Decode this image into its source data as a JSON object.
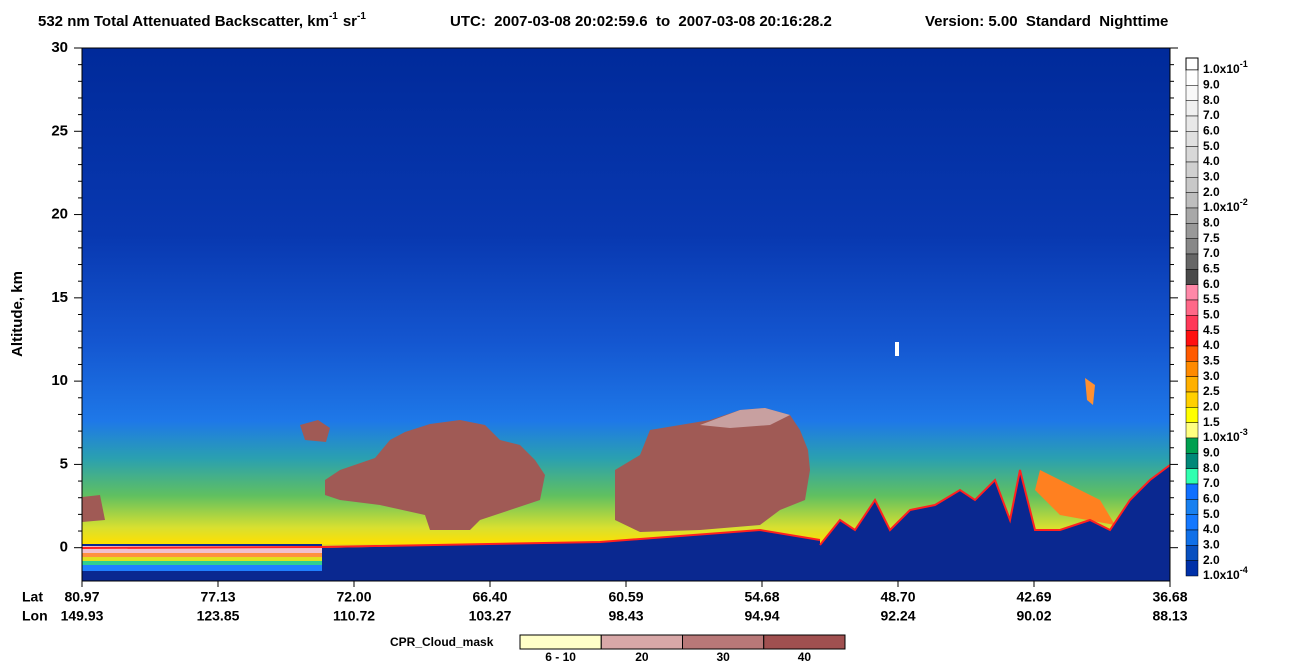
{
  "chart_data": {
    "type": "curtain",
    "title": [
      "532 nm Total Attenuated Backscatter, km",
      "-1",
      "sr",
      "-1"
    ],
    "subtitle": "UTC:  2007-03-08 20:02:59.6  to  2007-03-08 20:16:28.2",
    "version": "Version: 5.00  Standard  Nighttime",
    "ylabel": "Altitude, km",
    "ylim": [
      -2,
      30
    ],
    "yticks": [
      0,
      5,
      10,
      15,
      20,
      25,
      30
    ],
    "x_rows": [
      {
        "name": "Lat",
        "labels": [
          "80.97",
          "77.13",
          "72.00",
          "66.40",
          "60.59",
          "54.68",
          "48.70",
          "42.69",
          "36.68"
        ]
      },
      {
        "name": "Lon",
        "labels": [
          "149.93",
          "123.85",
          "110.72",
          "103.27",
          "98.43",
          "94.94",
          "92.24",
          "90.02",
          "88.13"
        ]
      }
    ],
    "colorbar": {
      "labels": [
        {
          "text": "1.0x10",
          "sup": "-1"
        },
        "9.0",
        "8.0",
        "7.0",
        "6.0",
        "5.0",
        "4.0",
        "3.0",
        "2.0",
        {
          "text": "1.0x10",
          "sup": "-2"
        },
        "8.0",
        "7.5",
        "7.0",
        "6.5",
        "6.0",
        "5.5",
        "5.0",
        "4.5",
        "4.0",
        "3.5",
        "3.0",
        "2.5",
        "2.0",
        "1.5",
        {
          "text": "1.0x10",
          "sup": "-3"
        },
        "9.0",
        "8.0",
        "7.0",
        "6.0",
        "5.0",
        "4.0",
        "3.0",
        "2.0",
        {
          "text": "1.0x10",
          "sup": "-4"
        }
      ],
      "colors": [
        "#ffffff",
        "#f8f8f8",
        "#f0f0f0",
        "#e8e8e8",
        "#e0e0e0",
        "#d8d8d8",
        "#d0d0d0",
        "#c8c8c8",
        "#bebebe",
        "#a8a8a8",
        "#999999",
        "#888888",
        "#666666",
        "#4a4a4a",
        "#ff88a8",
        "#ff6888",
        "#ff3858",
        "#ff1010",
        "#ff5a00",
        "#ff8a00",
        "#ffb000",
        "#ffd000",
        "#ffff00",
        "#ffff80",
        "#00a050",
        "#008878",
        "#30ffb0",
        "#1070ff",
        "#1880f0",
        "#1478ff",
        "#1070e8",
        "#0850c0",
        "#0030a8"
      ]
    },
    "cloud_mask": {
      "label": "CPR_Cloud_mask",
      "categories": [
        "6 - 10",
        "20",
        "30",
        "40"
      ],
      "colors": [
        "#ffffc8",
        "#d8a8a8",
        "#b87878",
        "#a05050"
      ]
    }
  }
}
